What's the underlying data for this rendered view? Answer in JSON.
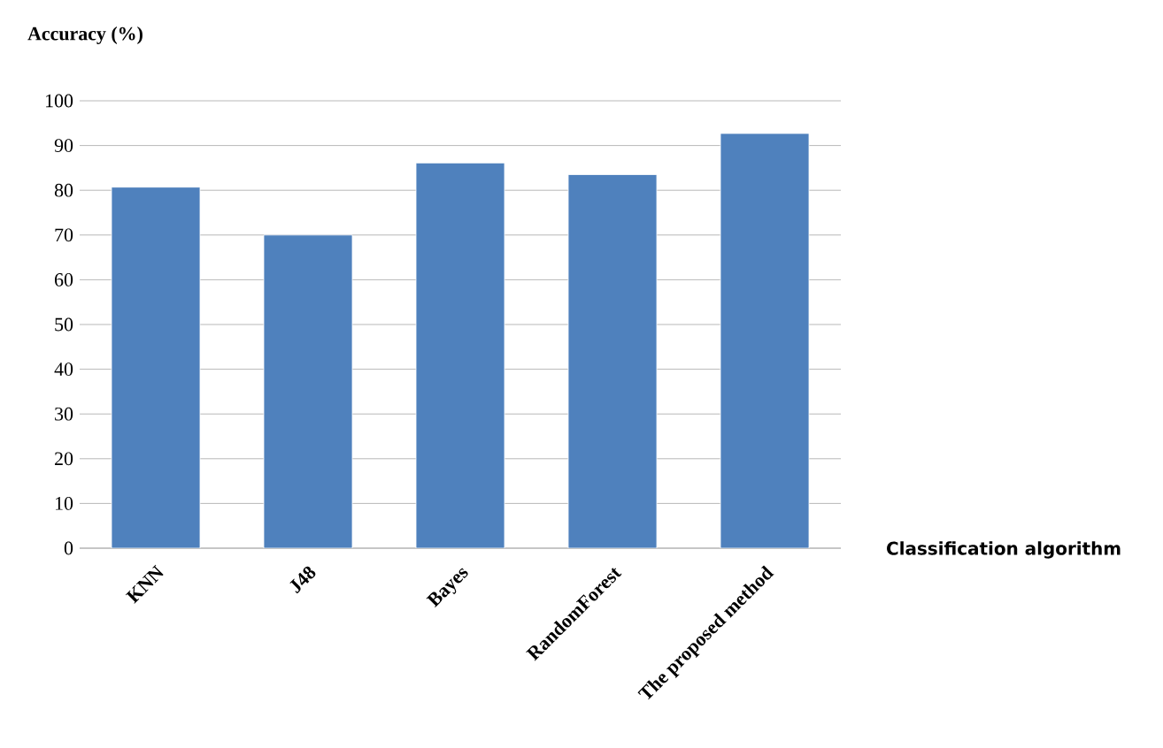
{
  "chart_data": {
    "type": "bar",
    "ylabel": "Accuracy (%)",
    "xlabel": "Classification algorithm",
    "categories": [
      "KNN",
      "J48",
      "Bayes",
      "RandomForest",
      "The proposed method"
    ],
    "values": [
      80.7,
      70,
      86.1,
      83.5,
      92.7
    ],
    "color": "#4f81bd",
    "ylim": [
      0,
      100
    ],
    "yticks": [
      0,
      10,
      20,
      30,
      40,
      50,
      60,
      70,
      80,
      90,
      100
    ],
    "grid": "y"
  }
}
